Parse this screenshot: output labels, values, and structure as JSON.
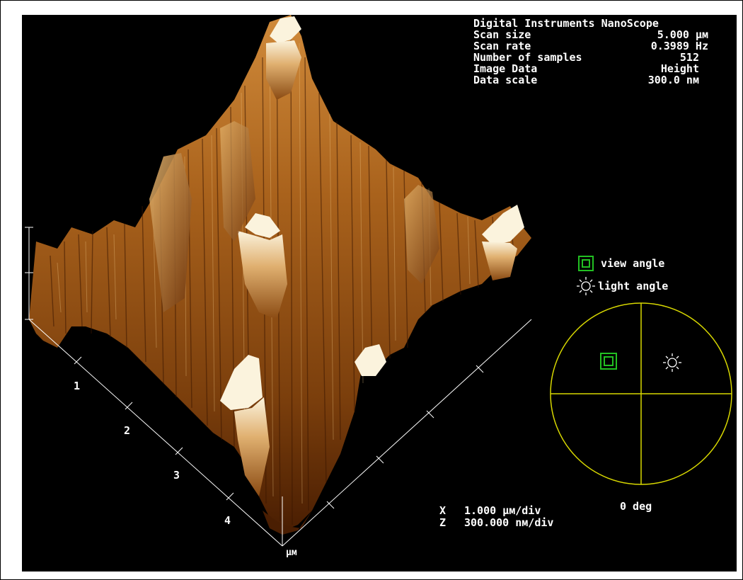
{
  "header": {
    "title": "Digital Instruments NanoScope",
    "params": [
      {
        "label": "Scan size",
        "value": "5.000 µм"
      },
      {
        "label": "Scan rate",
        "value": "0.3989 Hz"
      },
      {
        "label": "Number of samples",
        "value": "512"
      },
      {
        "label": "Image Data",
        "value": "Height"
      },
      {
        "label": "Data scale",
        "value": "300.0 nм"
      }
    ]
  },
  "axis": {
    "tick_labels": [
      "1",
      "2",
      "3",
      "4"
    ],
    "unit": "µм"
  },
  "scale": {
    "x_label": "X",
    "x_value": "1.000 µм/div",
    "z_label": "Z",
    "z_value": "300.000 nм/div"
  },
  "legend": {
    "view_angle": "view angle",
    "light_angle": "light angle"
  },
  "dial": {
    "angle_readout": "0 deg"
  },
  "colors": {
    "background": "#000000",
    "surface_dark": "#4a1e02",
    "surface_mid": "#a9621c",
    "surface_light": "#fbf3dd",
    "dial": "#d8d800",
    "view_marker": "#22c022"
  },
  "icons": {
    "view": "view-angle-icon",
    "light": "light-angle-icon"
  }
}
